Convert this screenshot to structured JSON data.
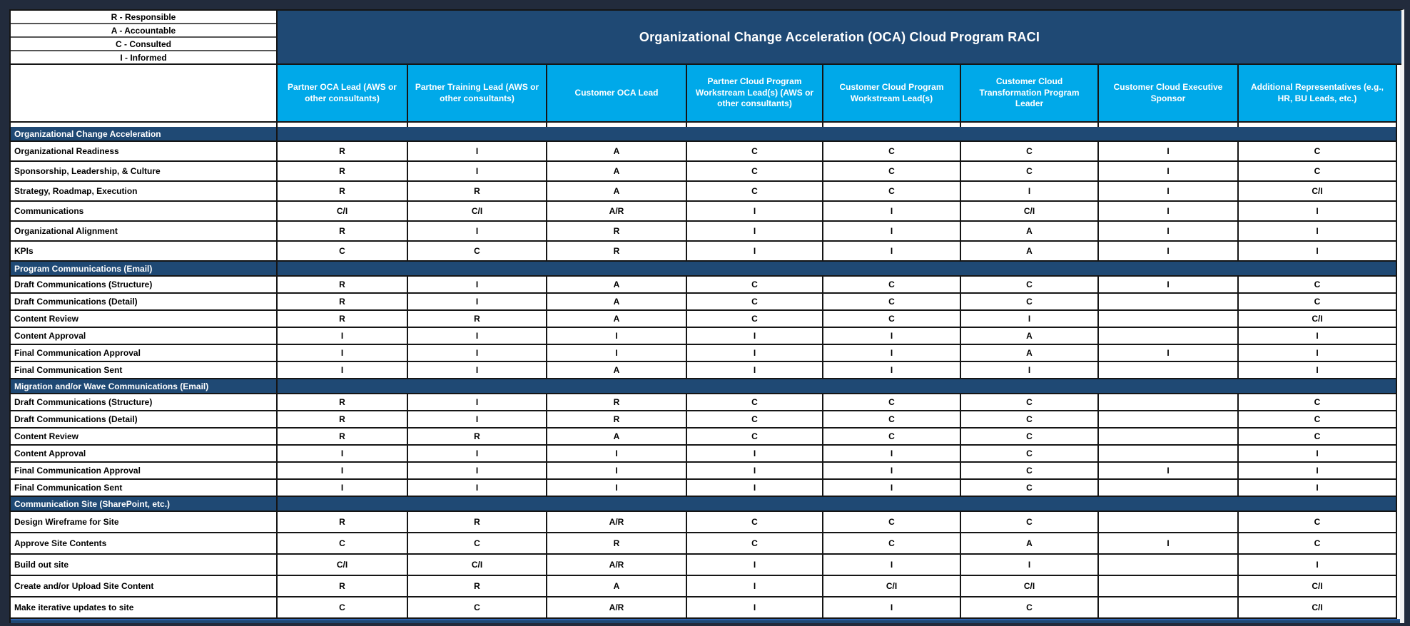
{
  "title": "Organizational Change Acceleration (OCA) Cloud Program RACI",
  "legend": [
    "R - Responsible",
    "A - Accountable",
    "C - Consulted",
    "I - Informed"
  ],
  "columns": [
    "Partner OCA Lead (AWS or other consultants)",
    "Partner Training Lead (AWS or other consultants)",
    "Customer OCA  Lead",
    "Partner Cloud Program Workstream Lead(s) (AWS or other consultants)",
    "Customer Cloud Program Workstream Lead(s)",
    "Customer Cloud Transformation Program Leader",
    "Customer Cloud Executive Sponsor",
    "Additional Representatives (e.g., HR, BU Leads, etc.)"
  ],
  "colors": {
    "navy": "#1F4974",
    "cyan": "#00A9E9",
    "background": "#222B3C",
    "grid_line": "#151515"
  },
  "sections": [
    {
      "name": "Organizational Change Acceleration",
      "rows": [
        {
          "label": "Organizational Readiness",
          "cells": [
            "R",
            "I",
            "A",
            "C",
            "C",
            "C",
            "I",
            "C"
          ]
        },
        {
          "label": "Sponsorship, Leadership, & Culture",
          "cells": [
            "R",
            "I",
            "A",
            "C",
            "C",
            "C",
            "I",
            "C"
          ]
        },
        {
          "label": "Strategy, Roadmap, Execution",
          "cells": [
            "R",
            "R",
            "A",
            "C",
            "C",
            "I",
            "I",
            "C/I"
          ]
        },
        {
          "label": "Communications",
          "cells": [
            "C/I",
            "C/I",
            "A/R",
            "I",
            "I",
            "C/I",
            "I",
            "I"
          ]
        },
        {
          "label": "Organizational Alignment",
          "cells": [
            "R",
            "I",
            "R",
            "I",
            "I",
            "A",
            "I",
            "I"
          ]
        },
        {
          "label": "KPIs",
          "cells": [
            "C",
            "C",
            "R",
            "I",
            "I",
            "A",
            "I",
            "I"
          ]
        }
      ]
    },
    {
      "name": "Program Communications (Email)",
      "rows": [
        {
          "label": "Draft Communications (Structure)",
          "cells": [
            "R",
            "I",
            "A",
            "C",
            "C",
            "C",
            "I",
            "C"
          ]
        },
        {
          "label": "Draft Communications (Detail)",
          "cells": [
            "R",
            "I",
            "A",
            "C",
            "C",
            "C",
            "",
            "C"
          ]
        },
        {
          "label": "Content Review",
          "cells": [
            "R",
            "R",
            "A",
            "C",
            "C",
            "I",
            "",
            "C/I"
          ]
        },
        {
          "label": "Content Approval",
          "cells": [
            "I",
            "I",
            "I",
            "I",
            "I",
            "A",
            "",
            "I"
          ]
        },
        {
          "label": "Final Communication Approval",
          "cells": [
            "I",
            "I",
            "I",
            "I",
            "I",
            "A",
            "I",
            "I"
          ]
        },
        {
          "label": "Final Communication Sent",
          "cells": [
            "I",
            "I",
            "A",
            "I",
            "I",
            "I",
            "",
            "I"
          ]
        }
      ]
    },
    {
      "name": "Migration and/or Wave Communications (Email)",
      "rows": [
        {
          "label": "Draft Communications (Structure)",
          "cells": [
            "R",
            "I",
            "R",
            "C",
            "C",
            "C",
            "",
            "C"
          ]
        },
        {
          "label": "Draft Communications (Detail)",
          "cells": [
            "R",
            "I",
            "R",
            "C",
            "C",
            "C",
            "",
            "C"
          ]
        },
        {
          "label": "Content Review",
          "cells": [
            "R",
            "R",
            "A",
            "C",
            "C",
            "C",
            "",
            "C"
          ]
        },
        {
          "label": "Content Approval",
          "cells": [
            "I",
            "I",
            "I",
            "I",
            "I",
            "C",
            "",
            "I"
          ]
        },
        {
          "label": "Final Communication Approval",
          "cells": [
            "I",
            "I",
            "I",
            "I",
            "I",
            "C",
            "I",
            "I"
          ]
        },
        {
          "label": "Final Communication Sent",
          "cells": [
            "I",
            "I",
            "I",
            "I",
            "I",
            "C",
            "",
            "I"
          ]
        }
      ]
    },
    {
      "name": "Communication Site (SharePoint, etc.)",
      "rows": [
        {
          "label": "Design Wireframe for Site",
          "cells": [
            "R",
            "R",
            "A/R",
            "C",
            "C",
            "C",
            "",
            "C"
          ]
        },
        {
          "label": "Approve Site Contents",
          "cells": [
            "C",
            "C",
            "R",
            "C",
            "C",
            "A",
            "I",
            "C"
          ]
        },
        {
          "label": "Build out site",
          "cells": [
            "C/I",
            "C/I",
            "A/R",
            "I",
            "I",
            "I",
            "",
            "I"
          ]
        },
        {
          "label": "Create and/or Upload Site Content",
          "cells": [
            "R",
            "R",
            "A",
            "I",
            "C/I",
            "C/I",
            "",
            "C/I"
          ]
        },
        {
          "label": "Make iterative updates to site",
          "cells": [
            "C",
            "C",
            "A/R",
            "I",
            "I",
            "C",
            "",
            "C/I"
          ]
        }
      ]
    }
  ]
}
